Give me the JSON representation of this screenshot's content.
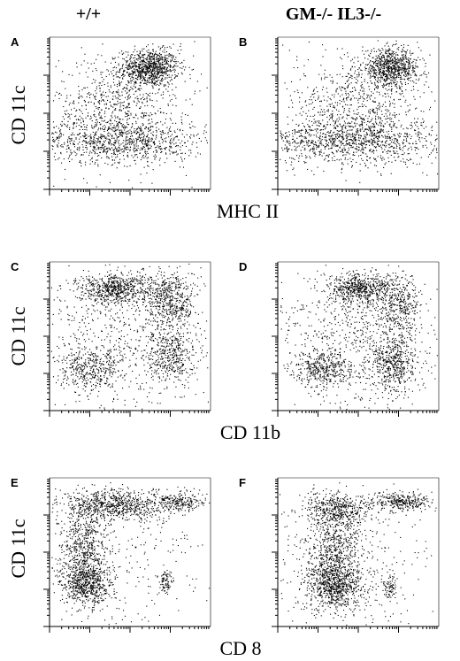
{
  "column_headers": [
    "+/+",
    "GM-/- IL3-/-"
  ],
  "row_xlabels": [
    "MHC II",
    "CD 11b",
    "CD 8"
  ],
  "row_ylabels": [
    "CD 11c",
    "CD 11c",
    "CD 11c"
  ],
  "colors": {
    "dot": "#000000",
    "background": "#ffffff"
  },
  "chart_data": [
    {
      "type": "scatter",
      "panel": "A",
      "column": "+/+",
      "xlabel": "MHC II",
      "ylabel": "CD 11c",
      "xlim": [
        0,
        1
      ],
      "ylim": [
        0,
        1
      ],
      "density_clusters": [
        {
          "x": 0.62,
          "y": 0.8,
          "sx": 0.09,
          "sy": 0.06,
          "weight": 0.34
        },
        {
          "x": 0.42,
          "y": 0.32,
          "sx": 0.28,
          "sy": 0.07,
          "weight": 0.36
        },
        {
          "x": 0.4,
          "y": 0.55,
          "sx": 0.18,
          "sy": 0.14,
          "weight": 0.2
        },
        {
          "x": 0.5,
          "y": 0.5,
          "sx": 0.35,
          "sy": 0.3,
          "weight": 0.1
        }
      ]
    },
    {
      "type": "scatter",
      "panel": "B",
      "column": "GM-/- IL3-/-",
      "xlabel": "MHC II",
      "ylabel": "CD 11c",
      "xlim": [
        0,
        1
      ],
      "ylim": [
        0,
        1
      ],
      "density_clusters": [
        {
          "x": 0.7,
          "y": 0.8,
          "sx": 0.09,
          "sy": 0.06,
          "weight": 0.3
        },
        {
          "x": 0.45,
          "y": 0.32,
          "sx": 0.28,
          "sy": 0.07,
          "weight": 0.38
        },
        {
          "x": 0.48,
          "y": 0.55,
          "sx": 0.2,
          "sy": 0.14,
          "weight": 0.2
        },
        {
          "x": 0.5,
          "y": 0.5,
          "sx": 0.35,
          "sy": 0.3,
          "weight": 0.12
        }
      ]
    },
    {
      "type": "scatter",
      "panel": "C",
      "column": "+/+",
      "xlabel": "CD 11b",
      "ylabel": "CD 11c",
      "xlim": [
        0,
        1
      ],
      "ylim": [
        0,
        1
      ],
      "density_clusters": [
        {
          "x": 0.4,
          "y": 0.82,
          "sx": 0.12,
          "sy": 0.05,
          "weight": 0.25
        },
        {
          "x": 0.75,
          "y": 0.75,
          "sx": 0.08,
          "sy": 0.1,
          "weight": 0.2
        },
        {
          "x": 0.25,
          "y": 0.28,
          "sx": 0.1,
          "sy": 0.07,
          "weight": 0.15
        },
        {
          "x": 0.75,
          "y": 0.38,
          "sx": 0.07,
          "sy": 0.1,
          "weight": 0.15
        },
        {
          "x": 0.5,
          "y": 0.5,
          "sx": 0.3,
          "sy": 0.25,
          "weight": 0.25
        }
      ]
    },
    {
      "type": "scatter",
      "panel": "D",
      "column": "GM-/- IL3-/-",
      "xlabel": "CD 11b",
      "ylabel": "CD 11c",
      "xlim": [
        0,
        1
      ],
      "ylim": [
        0,
        1
      ],
      "density_clusters": [
        {
          "x": 0.5,
          "y": 0.82,
          "sx": 0.1,
          "sy": 0.05,
          "weight": 0.22
        },
        {
          "x": 0.75,
          "y": 0.72,
          "sx": 0.07,
          "sy": 0.1,
          "weight": 0.15
        },
        {
          "x": 0.28,
          "y": 0.28,
          "sx": 0.09,
          "sy": 0.06,
          "weight": 0.15
        },
        {
          "x": 0.72,
          "y": 0.32,
          "sx": 0.07,
          "sy": 0.1,
          "weight": 0.18
        },
        {
          "x": 0.5,
          "y": 0.5,
          "sx": 0.28,
          "sy": 0.25,
          "weight": 0.3
        }
      ]
    },
    {
      "type": "scatter",
      "panel": "E",
      "column": "+/+",
      "xlabel": "CD 8",
      "ylabel": "CD 11c",
      "xlim": [
        0,
        1
      ],
      "ylim": [
        0,
        1
      ],
      "density_clusters": [
        {
          "x": 0.4,
          "y": 0.82,
          "sx": 0.18,
          "sy": 0.05,
          "weight": 0.3
        },
        {
          "x": 0.8,
          "y": 0.84,
          "sx": 0.08,
          "sy": 0.03,
          "weight": 0.08
        },
        {
          "x": 0.22,
          "y": 0.55,
          "sx": 0.07,
          "sy": 0.14,
          "weight": 0.22
        },
        {
          "x": 0.22,
          "y": 0.28,
          "sx": 0.08,
          "sy": 0.08,
          "weight": 0.25
        },
        {
          "x": 0.72,
          "y": 0.3,
          "sx": 0.02,
          "sy": 0.04,
          "weight": 0.03
        },
        {
          "x": 0.45,
          "y": 0.45,
          "sx": 0.3,
          "sy": 0.3,
          "weight": 0.12
        }
      ]
    },
    {
      "type": "scatter",
      "panel": "F",
      "column": "GM-/- IL3-/-",
      "xlabel": "CD 8",
      "ylabel": "CD 11c",
      "xlim": [
        0,
        1
      ],
      "ylim": [
        0,
        1
      ],
      "density_clusters": [
        {
          "x": 0.38,
          "y": 0.8,
          "sx": 0.12,
          "sy": 0.05,
          "weight": 0.15
        },
        {
          "x": 0.78,
          "y": 0.84,
          "sx": 0.09,
          "sy": 0.03,
          "weight": 0.12
        },
        {
          "x": 0.35,
          "y": 0.55,
          "sx": 0.08,
          "sy": 0.15,
          "weight": 0.25
        },
        {
          "x": 0.35,
          "y": 0.28,
          "sx": 0.09,
          "sy": 0.08,
          "weight": 0.28
        },
        {
          "x": 0.7,
          "y": 0.26,
          "sx": 0.02,
          "sy": 0.04,
          "weight": 0.03
        },
        {
          "x": 0.45,
          "y": 0.45,
          "sx": 0.3,
          "sy": 0.3,
          "weight": 0.17
        }
      ]
    }
  ]
}
